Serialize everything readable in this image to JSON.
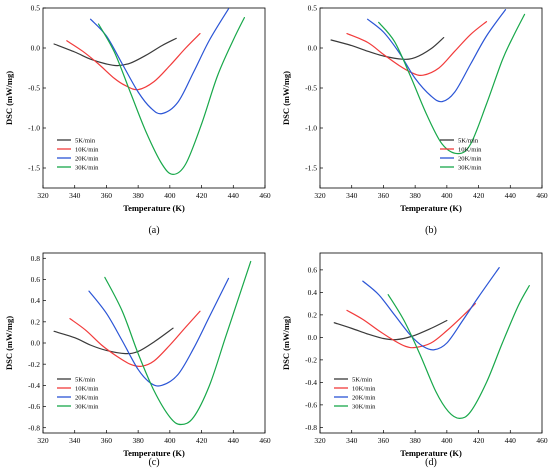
{
  "colors": {
    "5K/min": "#3a3a3a",
    "10K/min": "#f23b3b",
    "20K/min": "#2b55d6",
    "30K/min": "#18a84a"
  },
  "chart_data": [
    {
      "type": "line",
      "panel": "(a)",
      "xlabel": "Temperature (K)",
      "ylabel": "DSC (mW/mg)",
      "xlim": [
        320,
        460
      ],
      "ylim": [
        -1.75,
        0.5
      ],
      "xticks": [
        320,
        340,
        360,
        380,
        400,
        420,
        440,
        460
      ],
      "yticks": [
        -1.5,
        -1.0,
        -0.5,
        0.0,
        0.5
      ],
      "ytick_labels": [
        "-1.5",
        "-1.0",
        "-0.5",
        "0.0",
        "0.5"
      ],
      "legend": "bottom-left",
      "series": [
        {
          "name": "5K/min",
          "peak": [
            367,
            -0.22
          ],
          "x": [
            327,
            340,
            350,
            360,
            367,
            375,
            385,
            395,
            404
          ],
          "y": [
            0.05,
            -0.05,
            -0.14,
            -0.2,
            -0.22,
            -0.19,
            -0.09,
            0.03,
            0.12
          ]
        },
        {
          "name": "10K/min",
          "peak": [
            380,
            -0.52
          ],
          "x": [
            335,
            345,
            355,
            365,
            372,
            380,
            390,
            400,
            410,
            419
          ],
          "y": [
            0.09,
            -0.04,
            -0.2,
            -0.38,
            -0.47,
            -0.52,
            -0.42,
            -0.22,
            0.0,
            0.18
          ]
        },
        {
          "name": "20K/min",
          "peak": [
            395,
            -0.82
          ],
          "x": [
            350,
            360,
            370,
            380,
            388,
            395,
            405,
            415,
            425,
            437
          ],
          "y": [
            0.36,
            0.15,
            -0.2,
            -0.55,
            -0.75,
            -0.82,
            -0.68,
            -0.3,
            0.1,
            0.49
          ]
        },
        {
          "name": "30K/min",
          "peak": [
            402,
            -1.58
          ],
          "x": [
            355,
            365,
            375,
            385,
            395,
            402,
            410,
            420,
            430,
            440,
            447
          ],
          "y": [
            0.3,
            -0.05,
            -0.55,
            -1.05,
            -1.45,
            -1.58,
            -1.45,
            -0.95,
            -0.35,
            0.1,
            0.38
          ]
        }
      ]
    },
    {
      "type": "line",
      "panel": "(b)",
      "xlabel": "Temperature (K)",
      "ylabel": "DSC (mW/mg)",
      "xlim": [
        320,
        460
      ],
      "ylim": [
        -1.75,
        0.5
      ],
      "xticks": [
        320,
        340,
        360,
        380,
        400,
        420,
        440,
        460
      ],
      "yticks": [
        -1.5,
        -1.0,
        -0.5,
        0.0,
        0.5
      ],
      "ytick_labels": [
        "-1.5",
        "-1.0",
        "-0.5",
        "0.0",
        "0.5"
      ],
      "legend": "bottom-right",
      "series": [
        {
          "name": "5K/min",
          "peak": [
            372,
            -0.14
          ],
          "x": [
            327,
            340,
            350,
            360,
            372,
            380,
            390,
            398
          ],
          "y": [
            0.1,
            0.03,
            -0.04,
            -0.1,
            -0.14,
            -0.12,
            -0.01,
            0.13
          ]
        },
        {
          "name": "10K/min",
          "peak": [
            385,
            -0.34
          ],
          "x": [
            337,
            350,
            360,
            370,
            378,
            385,
            395,
            405,
            415,
            425
          ],
          "y": [
            0.18,
            0.07,
            -0.08,
            -0.22,
            -0.31,
            -0.34,
            -0.25,
            -0.04,
            0.17,
            0.33
          ]
        },
        {
          "name": "20K/min",
          "peak": [
            397,
            -0.67
          ],
          "x": [
            350,
            360,
            370,
            380,
            390,
            397,
            405,
            415,
            425,
            437
          ],
          "y": [
            0.36,
            0.2,
            -0.06,
            -0.38,
            -0.6,
            -0.67,
            -0.55,
            -0.2,
            0.15,
            0.48
          ]
        },
        {
          "name": "30K/min",
          "peak": [
            407,
            -1.32
          ],
          "x": [
            357,
            367,
            377,
            387,
            397,
            407,
            415,
            425,
            435,
            442,
            449
          ],
          "y": [
            0.32,
            0.08,
            -0.35,
            -0.82,
            -1.2,
            -1.32,
            -1.2,
            -0.7,
            -0.15,
            0.15,
            0.42
          ]
        }
      ]
    },
    {
      "type": "line",
      "panel": "(c)",
      "xlabel": "Temperature (K)",
      "ylabel": "DSC (mW/mg)",
      "xlim": [
        320,
        460
      ],
      "ylim": [
        -0.85,
        0.85
      ],
      "xticks": [
        320,
        340,
        360,
        380,
        400,
        420,
        440,
        460
      ],
      "yticks": [
        -0.8,
        -0.6,
        -0.4,
        -0.2,
        0.0,
        0.2,
        0.4,
        0.6,
        0.8
      ],
      "ytick_labels": [
        "-0.8",
        "-0.6",
        "-0.4",
        "-0.2",
        "0.0",
        "0.2",
        "0.4",
        "0.6",
        "0.8"
      ],
      "legend": "bottom-left",
      "series": [
        {
          "name": "5K/min",
          "peak": [
            372,
            -0.1
          ],
          "x": [
            327,
            340,
            350,
            360,
            372,
            380,
            390,
            402
          ],
          "y": [
            0.11,
            0.05,
            -0.02,
            -0.07,
            -0.1,
            -0.08,
            0.01,
            0.14
          ]
        },
        {
          "name": "10K/min",
          "peak": [
            382,
            -0.22
          ],
          "x": [
            337,
            347,
            357,
            367,
            375,
            382,
            390,
            400,
            410,
            419
          ],
          "y": [
            0.23,
            0.12,
            -0.02,
            -0.13,
            -0.2,
            -0.22,
            -0.17,
            -0.02,
            0.15,
            0.3
          ]
        },
        {
          "name": "20K/min",
          "peak": [
            395,
            -0.4
          ],
          "x": [
            349,
            360,
            370,
            380,
            388,
            395,
            405,
            415,
            425,
            437
          ],
          "y": [
            0.49,
            0.28,
            0.02,
            -0.25,
            -0.38,
            -0.4,
            -0.3,
            -0.05,
            0.25,
            0.61
          ]
        },
        {
          "name": "30K/min",
          "peak": [
            407,
            -0.77
          ],
          "x": [
            359,
            370,
            380,
            390,
            400,
            407,
            415,
            425,
            435,
            445,
            451
          ],
          "y": [
            0.62,
            0.3,
            -0.1,
            -0.45,
            -0.7,
            -0.77,
            -0.7,
            -0.4,
            0.05,
            0.5,
            0.77
          ]
        }
      ]
    },
    {
      "type": "line",
      "panel": "(d)",
      "xlabel": "Temperature (K)",
      "ylabel": "DSC (mW/mg)",
      "xlim": [
        320,
        460
      ],
      "ylim": [
        -0.85,
        0.75
      ],
      "xticks": [
        320,
        340,
        360,
        380,
        400,
        420,
        440,
        460
      ],
      "yticks": [
        -0.8,
        -0.6,
        -0.4,
        -0.2,
        0.0,
        0.2,
        0.4,
        0.6
      ],
      "ytick_labels": [
        "-0.8",
        "-0.6",
        "-0.4",
        "-0.2",
        "0.0",
        "0.2",
        "0.4",
        "0.6"
      ],
      "legend": "bottom-left",
      "series": [
        {
          "name": "5K/min",
          "peak": [
            368,
            -0.02
          ],
          "x": [
            329,
            340,
            350,
            360,
            368,
            378,
            390,
            400
          ],
          "y": [
            0.13,
            0.08,
            0.03,
            -0.01,
            -0.02,
            0.01,
            0.08,
            0.15
          ]
        },
        {
          "name": "10K/min",
          "peak": [
            380,
            -0.09
          ],
          "x": [
            337,
            347,
            357,
            367,
            374,
            380,
            390,
            400,
            410,
            418
          ],
          "y": [
            0.24,
            0.16,
            0.06,
            -0.03,
            -0.08,
            -0.09,
            -0.05,
            0.06,
            0.19,
            0.3
          ]
        },
        {
          "name": "20K/min",
          "peak": [
            392,
            -0.11
          ],
          "x": [
            347,
            357,
            367,
            377,
            385,
            392,
            400,
            410,
            420,
            433
          ],
          "y": [
            0.5,
            0.38,
            0.2,
            0.02,
            -0.08,
            -0.11,
            -0.05,
            0.15,
            0.36,
            0.62
          ]
        },
        {
          "name": "30K/min",
          "peak": [
            408,
            -0.72
          ],
          "x": [
            363,
            373,
            383,
            393,
            401,
            408,
            415,
            425,
            435,
            445,
            452
          ],
          "y": [
            0.38,
            0.15,
            -0.15,
            -0.48,
            -0.66,
            -0.72,
            -0.66,
            -0.4,
            -0.05,
            0.28,
            0.46
          ]
        }
      ]
    }
  ]
}
